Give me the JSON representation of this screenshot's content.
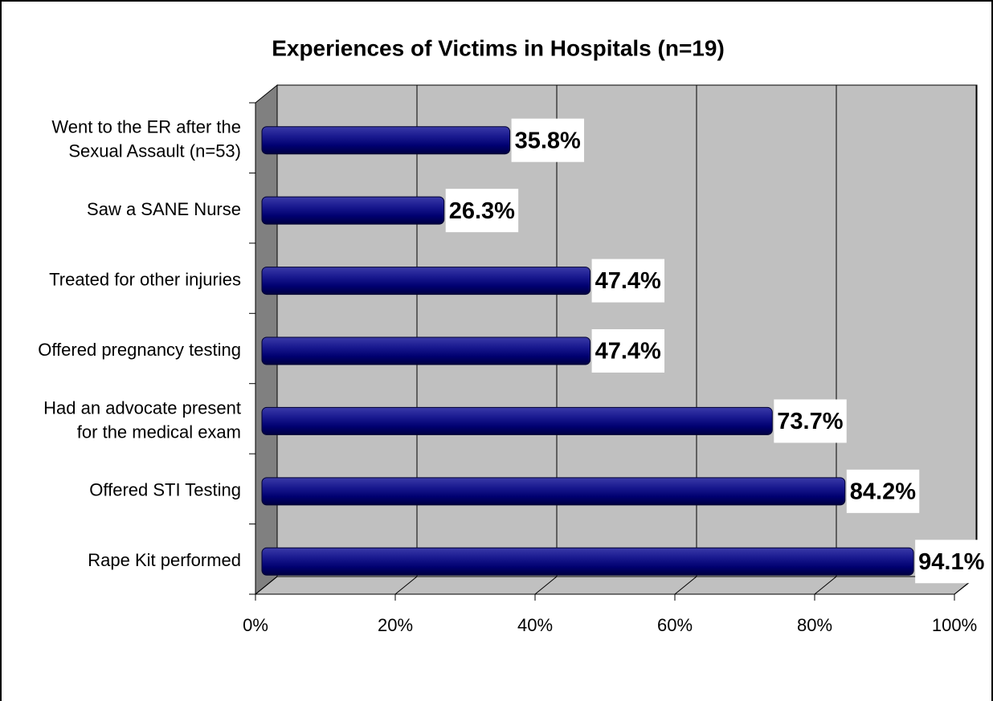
{
  "chart_data": {
    "type": "bar",
    "orientation": "horizontal",
    "title": "Experiences of Victims in Hospitals (n=19)",
    "categories": [
      "Went to the ER after the\nSexual Assault (n=53)",
      "Saw a SANE Nurse",
      "Treated for other injuries",
      "Offered pregnancy testing",
      "Had an advocate present\nfor the medical exam",
      "Offered STI Testing",
      "Rape Kit performed"
    ],
    "values": [
      35.8,
      26.3,
      47.4,
      47.4,
      73.7,
      84.2,
      94.1
    ],
    "value_labels": [
      "35.8%",
      "26.3%",
      "47.4%",
      "47.4%",
      "73.7%",
      "84.2%",
      "94.1%"
    ],
    "color": "#000080",
    "xlim": [
      0,
      100
    ],
    "xticks": [
      {
        "value": 0,
        "label": "0%"
      },
      {
        "value": 20,
        "label": "20%"
      },
      {
        "value": 40,
        "label": "40%"
      },
      {
        "value": 60,
        "label": "60%"
      },
      {
        "value": 80,
        "label": "80%"
      },
      {
        "value": 100,
        "label": "100%"
      }
    ],
    "grid": true
  }
}
